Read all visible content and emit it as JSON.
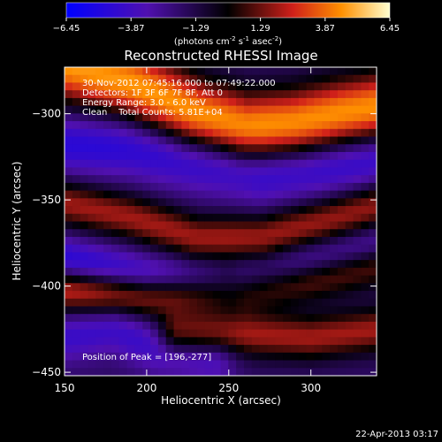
{
  "chart_data": {
    "type": "heatmap",
    "title": "Reconstructed RHESSI Image",
    "xlabel": "Heliocentric X (arcsec)",
    "ylabel": "Heliocentric Y (arcsec)",
    "xlim": [
      150,
      340
    ],
    "ylim": [
      -452,
      -273
    ],
    "x_ticks": [
      150,
      200,
      250,
      300
    ],
    "y_ticks": [
      -450,
      -400,
      -350,
      -300
    ],
    "colorbar": {
      "ticks": [
        "-6.45",
        "-3.87",
        "-1.29",
        "1.29",
        "3.87",
        "6.45"
      ],
      "range": [
        -6.45,
        6.45
      ],
      "units_text": "(photons cm",
      "units_exp1": "-2",
      "units_mid": " s",
      "units_exp2": "-1",
      "units_end": " asec",
      "units_exp3": "-2",
      "units_close": ")"
    },
    "annotations": {
      "line1": "30-Nov-2012 07:45:16.000 to 07:49:22.000",
      "line2": "Detectors: 1F 3F 6F 7F 8F, Att 0",
      "line3": "Energy Range: 3.0 - 6.0 keV",
      "line4": "Clean    Total Counts: 5.81E+04",
      "peak": "Position of Peak = [196,-277]"
    },
    "peak_position": [
      196,
      -277
    ],
    "features": [
      {
        "name": "bright-ridge-top",
        "path": [
          [
            150,
            -272
          ],
          [
            190,
            -282
          ],
          [
            230,
            -300
          ],
          [
            260,
            -308
          ],
          [
            290,
            -306
          ],
          [
            320,
            -300
          ],
          [
            345,
            -296
          ]
        ],
        "amplitude": 6.45,
        "width": 14
      },
      {
        "name": "dark-trough-1",
        "path": [
          [
            150,
            -318
          ],
          [
            190,
            -320
          ],
          [
            230,
            -328
          ],
          [
            270,
            -335
          ],
          [
            310,
            -330
          ],
          [
            345,
            -325
          ]
        ],
        "amplitude": -3.0,
        "width": 12
      },
      {
        "name": "band-2",
        "path": [
          [
            150,
            -352
          ],
          [
            190,
            -360
          ],
          [
            230,
            -372
          ],
          [
            270,
            -372
          ],
          [
            310,
            -362
          ],
          [
            345,
            -352
          ]
        ],
        "amplitude": 3.8,
        "width": 9
      },
      {
        "name": "dark-trough-2",
        "path": [
          [
            150,
            -385
          ],
          [
            200,
            -395
          ],
          [
            250,
            -400
          ],
          [
            300,
            -388
          ],
          [
            345,
            -378
          ]
        ],
        "amplitude": -3.4,
        "width": 9
      },
      {
        "name": "band-3",
        "path": [
          [
            150,
            -402
          ],
          [
            200,
            -405
          ],
          [
            260,
            -402
          ],
          [
            300,
            -395
          ],
          [
            345,
            -385
          ]
        ],
        "amplitude": 4.6,
        "width": 9
      },
      {
        "name": "band-4",
        "path": [
          [
            220,
            -428
          ],
          [
            260,
            -428
          ],
          [
            300,
            -430
          ],
          [
            345,
            -425
          ]
        ],
        "amplitude": 3.8,
        "width": 9
      },
      {
        "name": "dark-lower",
        "path": [
          [
            150,
            -430
          ],
          [
            180,
            -425
          ],
          [
            210,
            -438
          ],
          [
            240,
            -442
          ]
        ],
        "amplitude": -2.4,
        "width": 10
      }
    ],
    "grid": false
  },
  "timestamp": "22-Apr-2013 03:17"
}
